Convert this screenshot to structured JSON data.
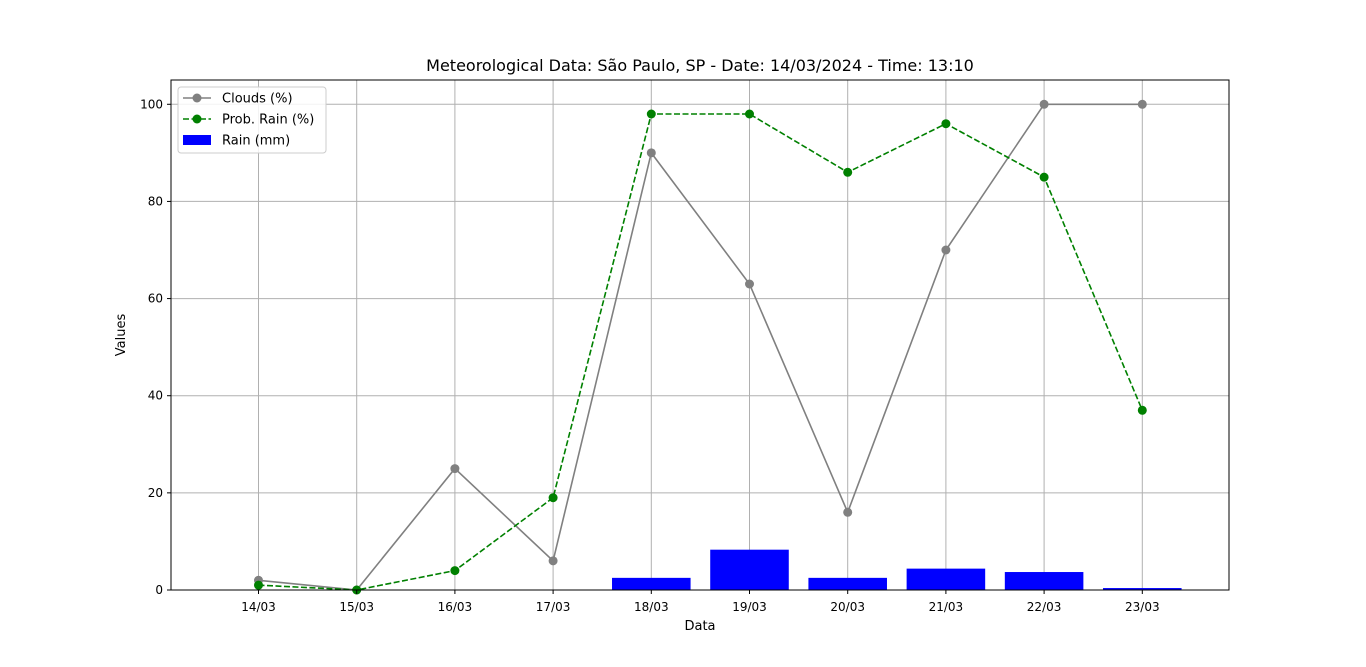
{
  "chart_data": {
    "type": "bar",
    "title": "Meteorological Data: São Paulo, SP - Date: 14/03/2024 - Time: 13:10",
    "xlabel": "Data",
    "ylabel": "Values",
    "ylim": [
      0,
      105
    ],
    "yticks": [
      0,
      20,
      40,
      60,
      80,
      100
    ],
    "grid": true,
    "legend_position": "top-left",
    "categories": [
      "14/03",
      "15/03",
      "16/03",
      "17/03",
      "18/03",
      "19/03",
      "20/03",
      "21/03",
      "22/03",
      "23/03"
    ],
    "series": [
      {
        "name": "Clouds (%)",
        "kind": "line",
        "color": "#808080",
        "line_style": "solid",
        "marker": "circle",
        "values": [
          2,
          0,
          25,
          6,
          90,
          63,
          16,
          70,
          100,
          100
        ]
      },
      {
        "name": "Prob. Rain (%)",
        "kind": "line",
        "color": "#008000",
        "line_style": "dashed",
        "marker": "circle",
        "values": [
          1,
          0,
          4,
          19,
          98,
          98,
          86,
          96,
          85,
          37
        ]
      },
      {
        "name": "Rain (mm)",
        "kind": "bar",
        "color": "#0000ff",
        "values": [
          0,
          0,
          0,
          0,
          2.5,
          8.3,
          2.5,
          4.4,
          3.7,
          0.4
        ]
      }
    ]
  }
}
